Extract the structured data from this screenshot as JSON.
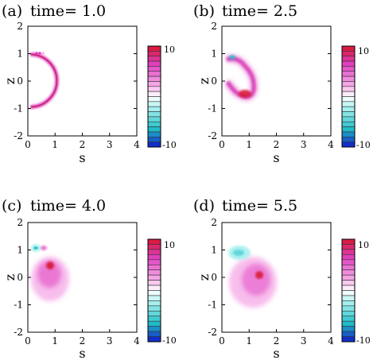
{
  "panels": [
    {
      "label": "(a)",
      "title": "time= 1.0",
      "xlabel": "s",
      "ylabel": "z",
      "xticks": [
        "0",
        "1",
        "2",
        "3",
        "4"
      ],
      "yticks": [
        "2",
        "1",
        "0",
        "-1",
        "-2"
      ],
      "colorbar": {
        "max_label": "10",
        "min_label": "-10"
      }
    },
    {
      "label": "(b)",
      "title": "time= 2.5",
      "xlabel": "s",
      "ylabel": "z",
      "xticks": [
        "0",
        "1",
        "2",
        "3",
        "4"
      ],
      "yticks": [
        "2",
        "1",
        "0",
        "-1",
        "-2"
      ],
      "colorbar": {
        "max_label": "10",
        "min_label": "-10"
      }
    },
    {
      "label": "(c)",
      "title": "time= 4.0",
      "xlabel": "s",
      "ylabel": "z",
      "xticks": [
        "0",
        "1",
        "2",
        "3",
        "4"
      ],
      "yticks": [
        "2",
        "1",
        "0",
        "-1",
        "-2"
      ],
      "colorbar": {
        "max_label": "10",
        "min_label": "-10"
      }
    },
    {
      "label": "(d)",
      "title": "time= 5.5",
      "xlabel": "s",
      "ylabel": "z",
      "xticks": [
        "0",
        "1",
        "2",
        "3",
        "4"
      ],
      "yticks": [
        "2",
        "1",
        "0",
        "-1",
        "-2"
      ],
      "colorbar": {
        "max_label": "10",
        "min_label": "-10"
      }
    }
  ],
  "colors": {
    "positive_strong": "#d81530",
    "positive": "#e040c0",
    "positive_light": "#f5a8e6",
    "neutral": "#ffffff",
    "negative_light": "#a8f0f0",
    "negative": "#20c0c8",
    "negative_strong": "#1018c8"
  },
  "chart_data": [
    {
      "type": "heatmap",
      "panel": "a",
      "xlim": [
        0,
        4
      ],
      "ylim": [
        -2,
        2
      ],
      "clim": [
        -10,
        10
      ],
      "features": [
        {
          "kind": "arc",
          "center": [
            0,
            0
          ],
          "radius": 0.95,
          "value": 8
        },
        {
          "kind": "points",
          "points": [
            [
              0.25,
              1.0
            ],
            [
              0.35,
              1.02
            ],
            [
              0.45,
              1.02
            ]
          ],
          "value": 6
        }
      ]
    },
    {
      "type": "heatmap",
      "panel": "b",
      "xlim": [
        0,
        4
      ],
      "ylim": [
        -2,
        2
      ],
      "clim": [
        -10,
        10
      ],
      "features": [
        {
          "kind": "path",
          "points": [
            [
              0.3,
              0.95
            ],
            [
              0.55,
              0.9
            ],
            [
              0.85,
              0.6
            ],
            [
              1.0,
              0.25
            ],
            [
              1.05,
              0.0
            ],
            [
              1.05,
              -0.35
            ],
            [
              0.95,
              -0.55
            ],
            [
              0.75,
              -0.55
            ],
            [
              0.5,
              -0.35
            ],
            [
              0.3,
              -0.1
            ]
          ],
          "value": 7
        },
        {
          "kind": "blob",
          "center": [
            0.85,
            -0.5
          ],
          "radius": 0.22,
          "value": 10
        },
        {
          "kind": "blob",
          "center": [
            0.25,
            0.9
          ],
          "radius": 0.1,
          "value": -5
        }
      ]
    },
    {
      "type": "heatmap",
      "panel": "c",
      "xlim": [
        0,
        4
      ],
      "ylim": [
        -2,
        2
      ],
      "clim": [
        -10,
        10
      ],
      "features": [
        {
          "kind": "blob",
          "center": [
            0.85,
            0.2
          ],
          "radius": 0.65,
          "value": 4
        },
        {
          "kind": "blob",
          "center": [
            0.8,
            0.5
          ],
          "radius": 0.18,
          "value": 10
        },
        {
          "kind": "blob",
          "center": [
            0.3,
            1.15
          ],
          "radius": 0.14,
          "value": -5
        }
      ]
    },
    {
      "type": "heatmap",
      "panel": "d",
      "xlim": [
        0,
        4
      ],
      "ylim": [
        -2,
        2
      ],
      "clim": [
        -10,
        10
      ],
      "features": [
        {
          "kind": "blob",
          "center": [
            1.0,
            -0.1
          ],
          "radius": 0.8,
          "value": 4
        },
        {
          "kind": "blob",
          "center": [
            1.3,
            0.1
          ],
          "radius": 0.2,
          "value": 10
        },
        {
          "kind": "blob",
          "center": [
            0.7,
            1.05
          ],
          "radius": 0.3,
          "value": -4
        }
      ]
    }
  ]
}
